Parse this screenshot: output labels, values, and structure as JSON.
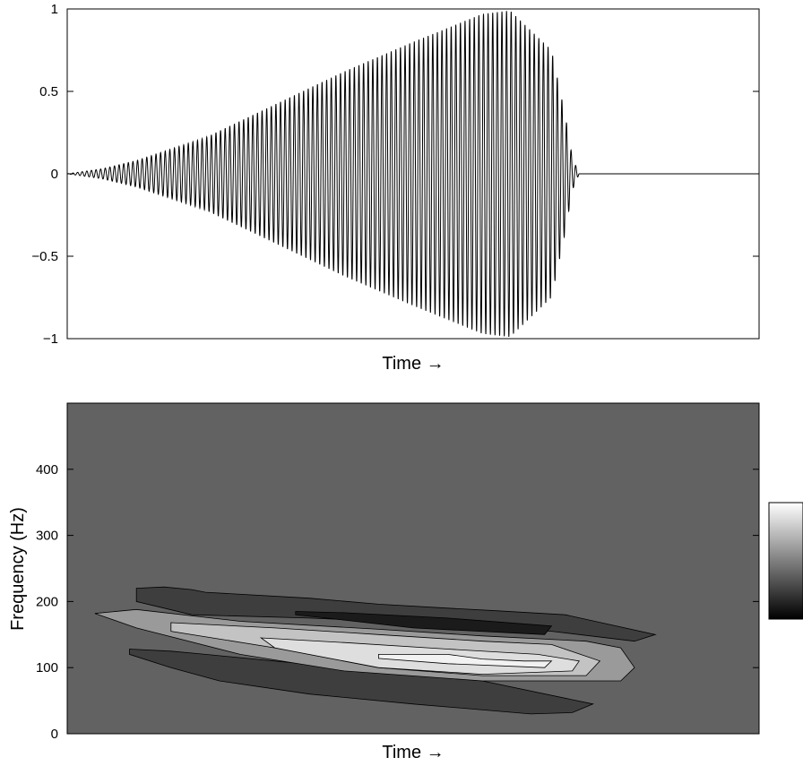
{
  "chart_data": [
    {
      "type": "line",
      "xlabel": "Time →",
      "ylabel": "",
      "ylim": [
        -1,
        1
      ],
      "yticks": [
        "1",
        "0.5",
        "0",
        "−0.5",
        "−1"
      ],
      "ytick_values": [
        1,
        0.5,
        0,
        -0.5,
        -1
      ],
      "grid": false,
      "series": [
        {
          "envelope_t": [
            0.0,
            0.05,
            0.1,
            0.2,
            0.3,
            0.4,
            0.5,
            0.6,
            0.64,
            0.7,
            0.72,
            0.73,
            0.74,
            1.0
          ],
          "envelope_amp": [
            0.0,
            0.03,
            0.08,
            0.22,
            0.42,
            0.62,
            0.8,
            0.97,
            0.99,
            0.75,
            0.35,
            0.1,
            0.0,
            0.0
          ],
          "cycles": 150
        }
      ]
    },
    {
      "type": "heatmap",
      "xlabel": "Time →",
      "ylabel": "Frequency (Hz)",
      "ylim": [
        0,
        500
      ],
      "yticks": [
        "400",
        "300",
        "200",
        "100",
        "0"
      ],
      "ytick_values": [
        400,
        300,
        200,
        100,
        0
      ],
      "grid": false,
      "colorbar": "right",
      "colormap": "gray",
      "background_color": "#626262",
      "contours": [
        {
          "fill": "#3e3e3e",
          "t": [
            0.1,
            0.14,
            0.18,
            0.2,
            0.35,
            0.45,
            0.55,
            0.62,
            0.72,
            0.85,
            0.82,
            0.7,
            0.5,
            0.35,
            0.18,
            0.1
          ],
          "f": [
            220,
            222,
            218,
            214,
            205,
            196,
            190,
            186,
            180,
            150,
            140,
            155,
            168,
            175,
            180,
            200
          ]
        },
        {
          "fill": "#1b1b1b",
          "t": [
            0.33,
            0.4,
            0.55,
            0.7,
            0.69,
            0.5,
            0.4,
            0.33
          ],
          "f": [
            185,
            183,
            175,
            163,
            150,
            160,
            172,
            180
          ]
        },
        {
          "fill": "#3e3e3e",
          "t": [
            0.09,
            0.15,
            0.2,
            0.3,
            0.45,
            0.6,
            0.76,
            0.73,
            0.67,
            0.5,
            0.35,
            0.22,
            0.15,
            0.09
          ],
          "f": [
            128,
            125,
            120,
            110,
            95,
            80,
            45,
            32,
            30,
            45,
            60,
            80,
            100,
            120
          ]
        },
        {
          "fill": "#9a9a9a",
          "t": [
            0.04,
            0.1,
            0.25,
            0.45,
            0.6,
            0.75,
            0.8,
            0.82,
            0.8,
            0.6,
            0.4,
            0.25,
            0.1,
            0.04
          ],
          "f": [
            182,
            188,
            170,
            158,
            148,
            140,
            130,
            100,
            80,
            80,
            95,
            120,
            160,
            182
          ]
        },
        {
          "fill": "#c3c3c3",
          "t": [
            0.15,
            0.3,
            0.45,
            0.6,
            0.7,
            0.77,
            0.75,
            0.6,
            0.45,
            0.3,
            0.15
          ],
          "f": [
            168,
            160,
            150,
            140,
            135,
            110,
            88,
            88,
            100,
            130,
            155
          ]
        },
        {
          "fill": "#dedede",
          "t": [
            0.28,
            0.4,
            0.55,
            0.68,
            0.74,
            0.73,
            0.6,
            0.45,
            0.3,
            0.28
          ],
          "f": [
            145,
            138,
            128,
            120,
            110,
            95,
            90,
            100,
            130,
            145
          ]
        },
        {
          "fill": "#f2f2f2",
          "t": [
            0.45,
            0.55,
            0.6,
            0.66,
            0.7,
            0.69,
            0.55,
            0.45
          ],
          "f": [
            120,
            120,
            113,
            110,
            110,
            100,
            106,
            114
          ]
        }
      ]
    }
  ]
}
